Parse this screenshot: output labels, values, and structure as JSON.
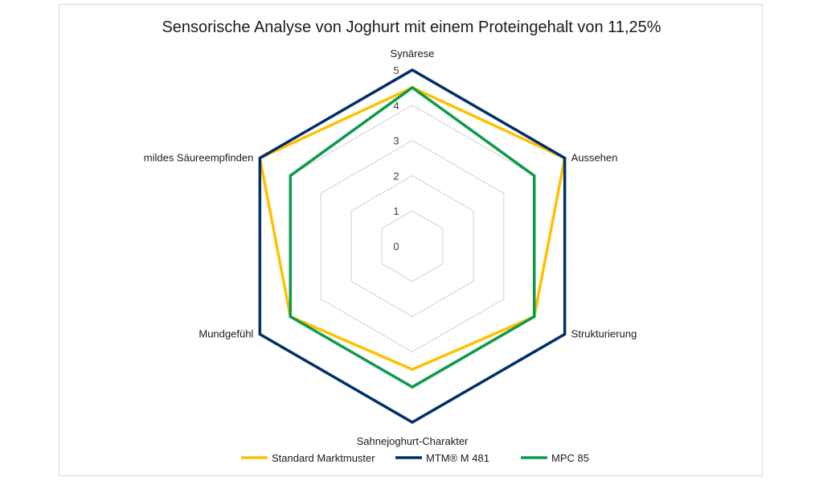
{
  "chart_data": {
    "type": "radar",
    "title": "Sensorische Analyse von Joghurt mit einem Proteingehalt von 11,25%",
    "categories": [
      "Synärese",
      "Aussehen",
      "Strukturierung",
      "Sahnejoghurt-Charakter",
      "Mundgefühl",
      "mildes Säureempfinden"
    ],
    "ticks": [
      "0",
      "1",
      "2",
      "3",
      "4",
      "5"
    ],
    "rmin": 0,
    "rmax": 5,
    "grid": true,
    "legend_position": "bottom",
    "series": [
      {
        "name": "Standard Marktmuster",
        "color": "#FFC000",
        "values": [
          4.5,
          5,
          4,
          3.5,
          4,
          5
        ]
      },
      {
        "name": "MTM® M 481",
        "color": "#002F6C",
        "values": [
          5,
          5,
          5,
          5,
          5,
          5
        ]
      },
      {
        "name": "MPC 85",
        "color": "#0E9A4C",
        "values": [
          4.5,
          4,
          4,
          4,
          4,
          4
        ]
      }
    ]
  }
}
